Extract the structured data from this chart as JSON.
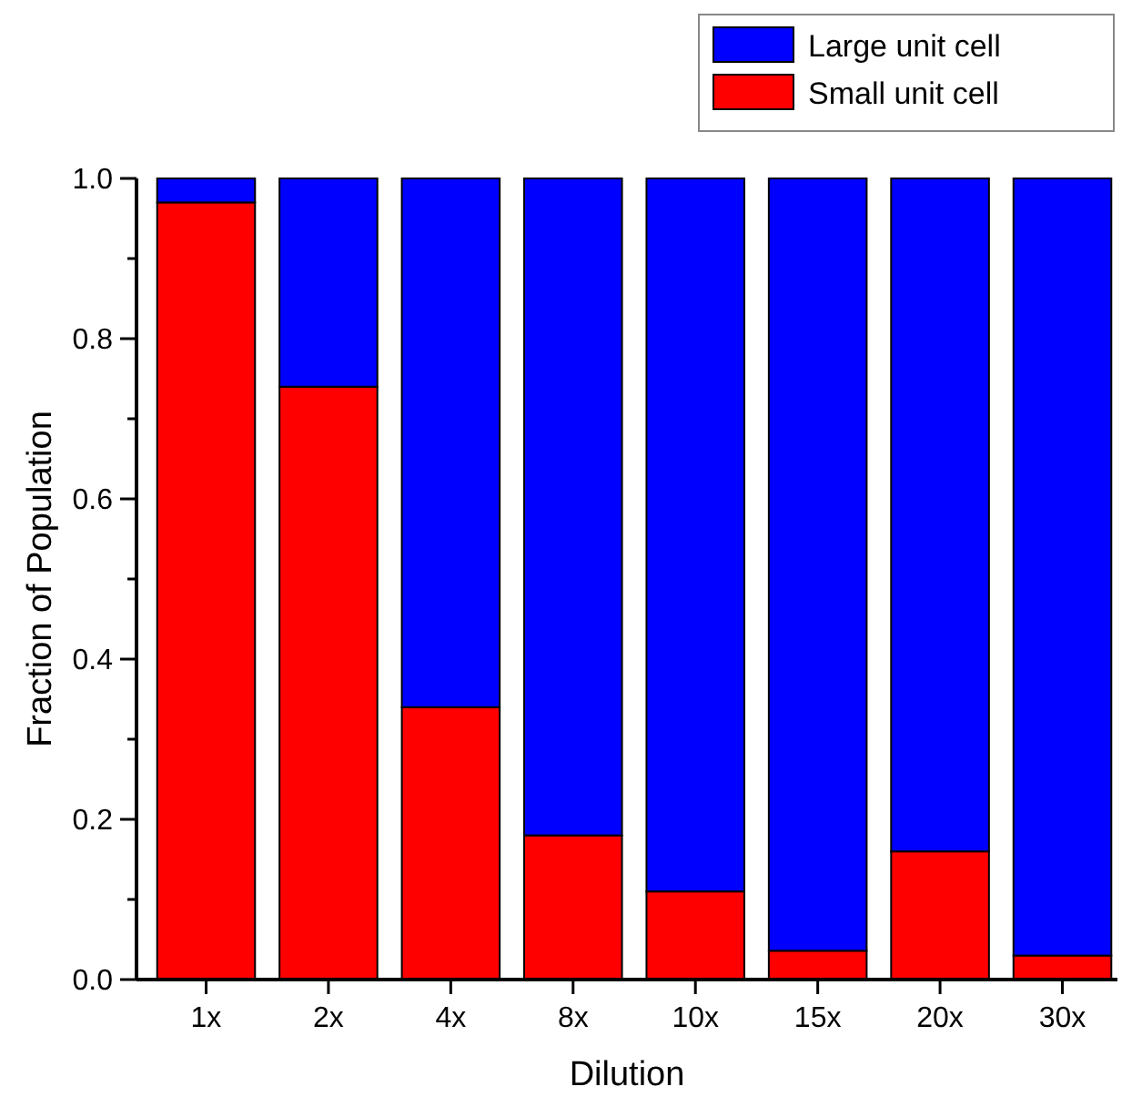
{
  "chart_data": {
    "type": "bar",
    "stacked": true,
    "xlabel": "Dilution",
    "ylabel": "Fraction of Population",
    "categories": [
      "1x",
      "2x",
      "4x",
      "8x",
      "10x",
      "15x",
      "20x",
      "30x"
    ],
    "series": [
      {
        "name": "Small unit cell",
        "color": "#ff0000",
        "values": [
          0.97,
          0.74,
          0.34,
          0.18,
          0.11,
          0.036,
          0.16,
          0.03
        ]
      },
      {
        "name": "Large unit cell",
        "color": "#0000ff",
        "values": [
          0.03,
          0.26,
          0.66,
          0.82,
          0.89,
          0.964,
          0.84,
          0.97
        ]
      }
    ],
    "ylim": [
      0,
      1.0
    ],
    "yticks": [
      {
        "value": 0,
        "label": "0.0"
      },
      {
        "value": 0.1,
        "label": null
      },
      {
        "value": 0.2,
        "label": "0.2"
      },
      {
        "value": 0.3,
        "label": null
      },
      {
        "value": 0.4,
        "label": "0.4"
      },
      {
        "value": 0.5,
        "label": null
      },
      {
        "value": 0.6,
        "label": "0.6"
      },
      {
        "value": 0.7,
        "label": null
      },
      {
        "value": 0.8,
        "label": "0.8"
      },
      {
        "value": 0.9,
        "label": null
      },
      {
        "value": 1.0,
        "label": "1.0"
      }
    ],
    "grid": false,
    "legend": "top right"
  }
}
